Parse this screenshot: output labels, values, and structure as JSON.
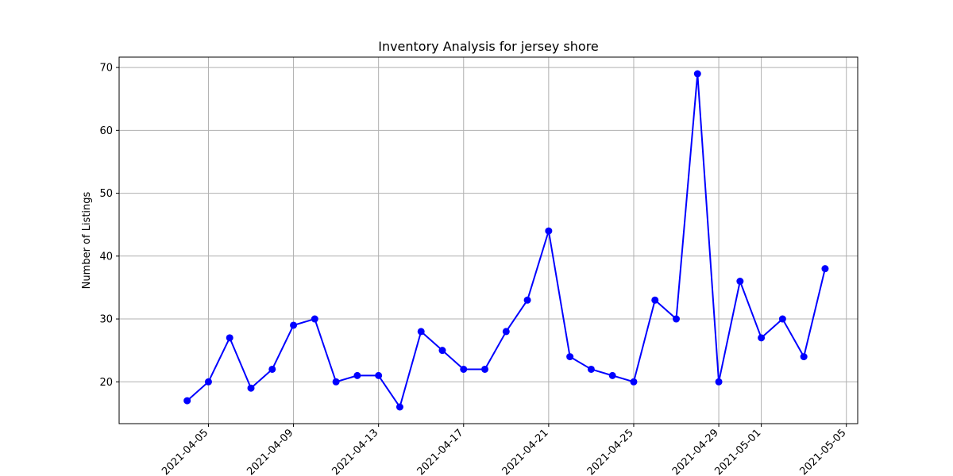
{
  "chart_data": {
    "type": "line",
    "title": "Inventory Analysis for jersey shore",
    "xlabel": "",
    "ylabel": "Number of Listings",
    "x": [
      "2021-04-04",
      "2021-04-05",
      "2021-04-06",
      "2021-04-07",
      "2021-04-08",
      "2021-04-09",
      "2021-04-10",
      "2021-04-11",
      "2021-04-12",
      "2021-04-13",
      "2021-04-14",
      "2021-04-15",
      "2021-04-16",
      "2021-04-17",
      "2021-04-18",
      "2021-04-19",
      "2021-04-20",
      "2021-04-21",
      "2021-04-22",
      "2021-04-23",
      "2021-04-24",
      "2021-04-25",
      "2021-04-26",
      "2021-04-27",
      "2021-04-28",
      "2021-04-29",
      "2021-04-30",
      "2021-05-01",
      "2021-05-02",
      "2021-05-03",
      "2021-05-04"
    ],
    "series": [
      {
        "values": [
          17,
          20,
          27,
          19,
          22,
          29,
          30,
          20,
          21,
          21,
          16,
          28,
          25,
          22,
          22,
          28,
          33,
          44,
          24,
          22,
          21,
          20,
          33,
          30,
          69,
          20,
          36,
          27,
          30,
          24,
          38
        ],
        "color": "#0000ff",
        "marker": "circle"
      }
    ],
    "xlim": [
      "2021-03-31T19:12",
      "2021-05-05T12:48"
    ],
    "ylim": [
      13.35,
      71.65
    ],
    "xticks": [
      "2021-04-05",
      "2021-04-09",
      "2021-04-13",
      "2021-04-17",
      "2021-04-21",
      "2021-04-25",
      "2021-04-29",
      "2021-05-01",
      "2021-05-05"
    ],
    "yticks": [
      20,
      30,
      40,
      50,
      60,
      70
    ],
    "grid": true,
    "colors": {
      "line": "#0000ff",
      "grid": "#b0b0b0"
    }
  }
}
